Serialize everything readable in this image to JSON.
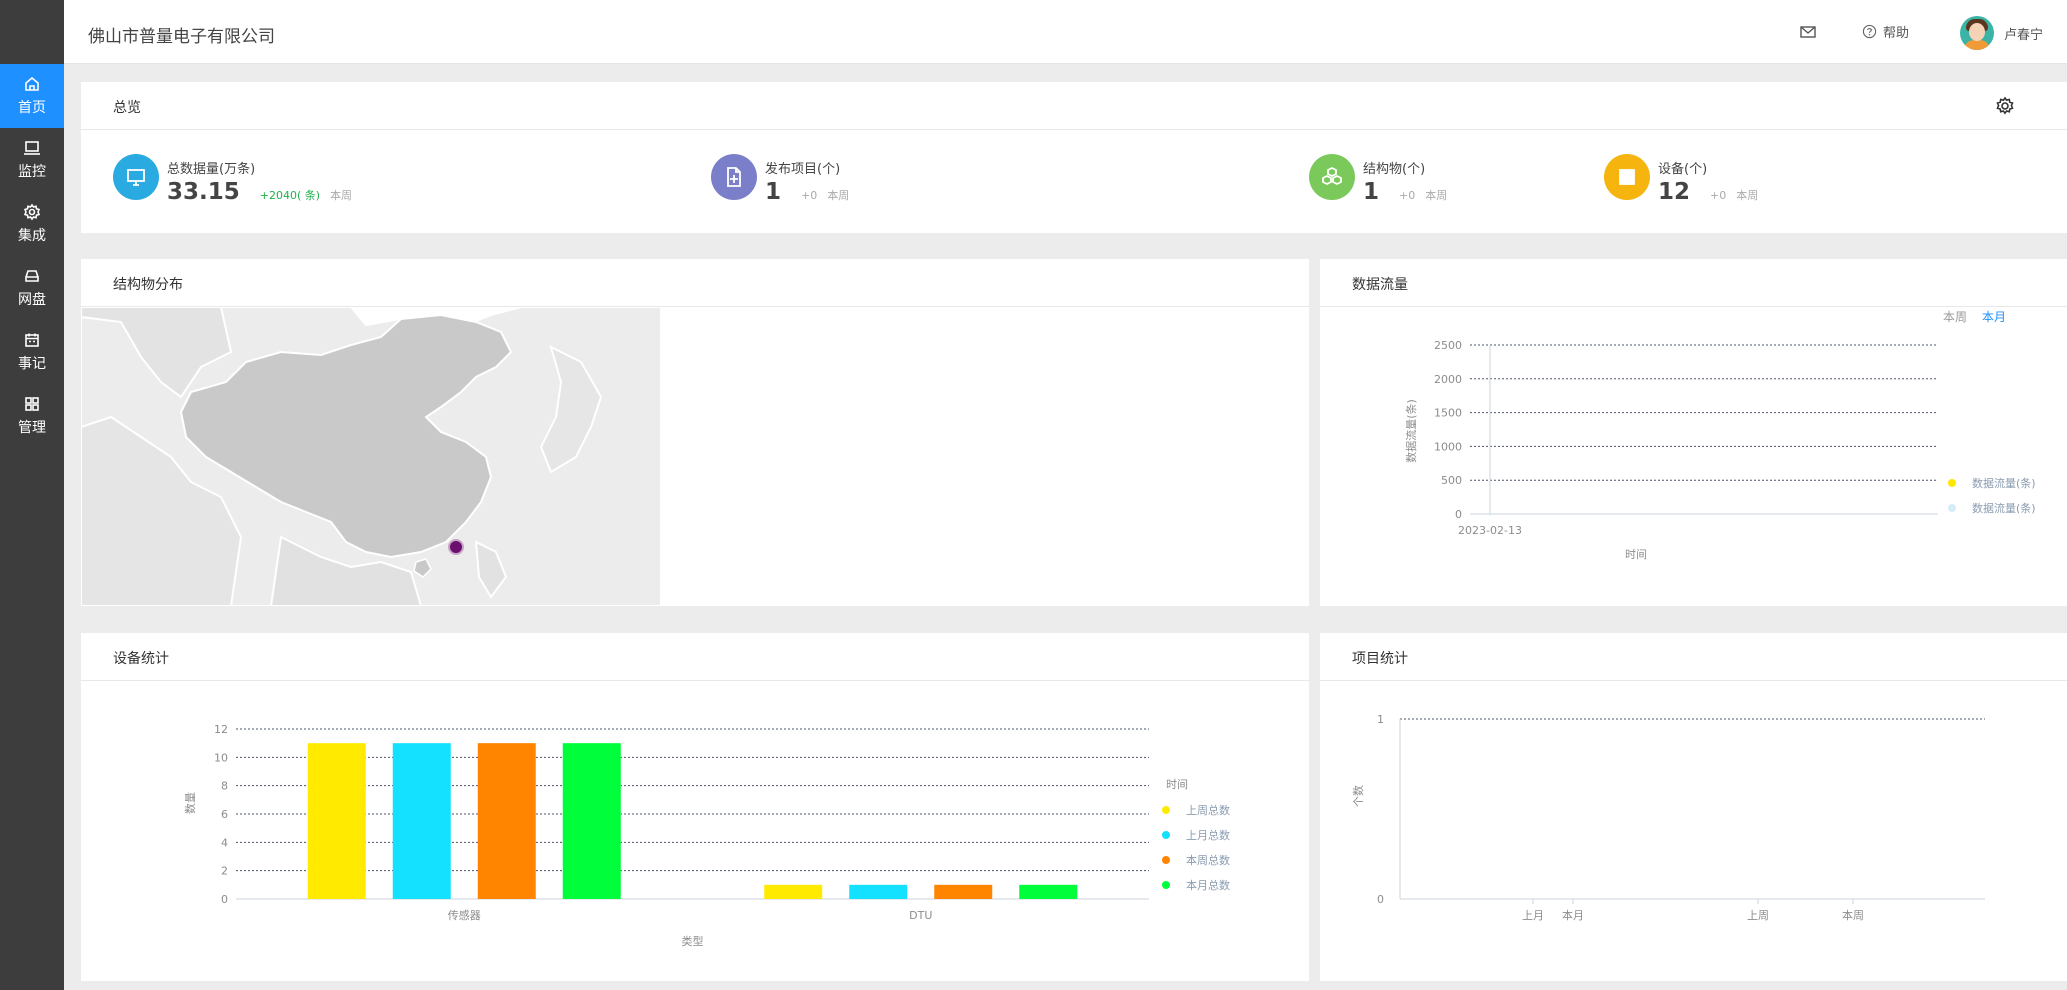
{
  "app": {
    "company": "佛山市普量电子有限公司"
  },
  "nav": [
    {
      "label": "首页",
      "icon": "home-icon",
      "active": true
    },
    {
      "label": "监控",
      "icon": "monitor-icon",
      "active": false
    },
    {
      "label": "集成",
      "icon": "gear-icon",
      "active": false
    },
    {
      "label": "网盘",
      "icon": "drive-icon",
      "active": false
    },
    {
      "label": "事记",
      "icon": "calendar-icon",
      "active": false
    },
    {
      "label": "管理",
      "icon": "grid-icon",
      "active": false
    }
  ],
  "header": {
    "help_label": "帮助",
    "user_name": "卢春宁"
  },
  "overview": {
    "title": "总览",
    "stats": [
      {
        "label": "总数据量(万条)",
        "value": "33.15",
        "delta": "+2040( 条)",
        "week": "本周",
        "color": "#29abe2",
        "icon": "monitor-icon"
      },
      {
        "label": "发布项目(个)",
        "value": "1",
        "delta": "+0",
        "week": "本周",
        "color": "#7b7fc9",
        "icon": "document-add-icon"
      },
      {
        "label": "结构物(个)",
        "value": "1",
        "delta": "+0",
        "week": "本周",
        "color": "#7cc95b",
        "icon": "cubes-icon"
      },
      {
        "label": "设备(个)",
        "value": "12",
        "delta": "+0",
        "week": "本周",
        "color": "#f6b40e",
        "icon": "square-icon"
      }
    ]
  },
  "map_panel": {
    "title": "结构物分布"
  },
  "flow_panel": {
    "title": "数据流量",
    "toggle": [
      "本周",
      "本月"
    ],
    "active_toggle": "本月",
    "chart_data": {
      "type": "line",
      "x": [
        "2023-02-13"
      ],
      "xlabel": "时间",
      "ylabel": "数据流量(条)",
      "yticks": [
        "2500",
        "2000",
        "1500",
        "1000",
        "500",
        "0"
      ],
      "ylim": [
        0,
        2500
      ],
      "grid": true,
      "legend_position": "right",
      "series": [
        {
          "name": "数据流量(条)",
          "color": "#ffe600",
          "values": [
            0
          ]
        },
        {
          "name": "数据流量(条)",
          "color": "#d6ecf8",
          "values": [
            0
          ]
        }
      ]
    }
  },
  "device_panel": {
    "title": "设备统计",
    "chart_data": {
      "type": "bar",
      "categories": [
        "传感器",
        "DTU"
      ],
      "xlabel": "类型",
      "ylabel": "数量",
      "legend_title": "时间",
      "yticks": [
        "12",
        "10",
        "8",
        "6",
        "4",
        "2",
        "0"
      ],
      "ylim": [
        0,
        12
      ],
      "grid": true,
      "legend_position": "right",
      "series": [
        {
          "name": "上周总数",
          "color": "#ffea00",
          "values": [
            11,
            1
          ]
        },
        {
          "name": "上月总数",
          "color": "#14e1ff",
          "values": [
            11,
            1
          ]
        },
        {
          "name": "本周总数",
          "color": "#ff8400",
          "values": [
            11,
            1
          ]
        },
        {
          "name": "本月总数",
          "color": "#00ff3a",
          "values": [
            11,
            1
          ]
        }
      ]
    }
  },
  "project_panel": {
    "title": "项目统计",
    "chart_data": {
      "type": "bar",
      "categories": [
        "上月",
        "本月",
        "上周",
        "本周"
      ],
      "ylabel": "个数",
      "yticks": [
        "1",
        "0"
      ],
      "ylim": [
        0,
        1
      ],
      "grid": true,
      "values": [
        0,
        0,
        0,
        0
      ]
    }
  }
}
